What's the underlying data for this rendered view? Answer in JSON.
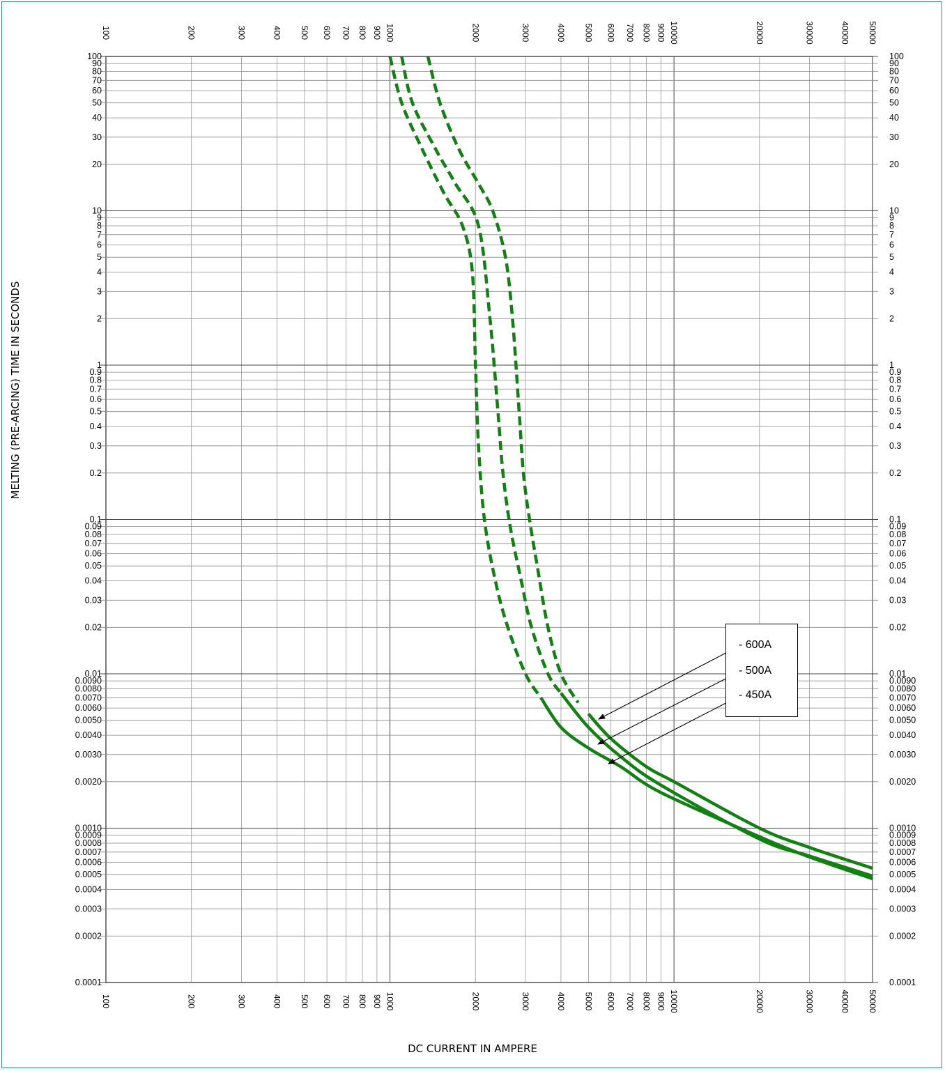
{
  "chart_data": {
    "type": "line",
    "xlabel": "DC CURRENT IN AMPERE",
    "ylabel": "MELTING (PRE-ARCING) TIME IN SECONDS",
    "xscale": "log",
    "yscale": "log",
    "xlim": [
      100,
      50000
    ],
    "ylim": [
      0.0001,
      100
    ],
    "grid": true,
    "x_ticks": [
      "100",
      "200",
      "300",
      "400",
      "500",
      "600",
      "700",
      "800",
      "900",
      "1000",
      "2000",
      "3000",
      "4000",
      "5000",
      "6000",
      "7000",
      "8000",
      "9000",
      "10000",
      "20000",
      "30000",
      "40000",
      "50000"
    ],
    "y_ticks": [
      "100",
      "90",
      "80",
      "70",
      "60",
      "50",
      "40",
      "30",
      "20",
      "10",
      "9",
      "8",
      "7",
      "6",
      "5",
      "4",
      "3",
      "2",
      "1",
      "0.9",
      "0.8",
      "0.7",
      "0.6",
      "0.5",
      "0.4",
      "0.3",
      "0.2",
      "0.1",
      "0.09",
      "0.08",
      "0.07",
      "0.06",
      "0.05",
      "0.04",
      "0.03",
      "0.02",
      "0.01",
      "0.0090",
      "0.0080",
      "0.0070",
      "0.0060",
      "0.0050",
      "0.0040",
      "0.0030",
      "0.0020",
      "0.0010",
      "0.0009",
      "0.0008",
      "0.0007",
      "0.0006",
      "0.0005",
      "0.0004",
      "0.0003",
      "0.0002",
      "0.0001"
    ],
    "legend_placement": "center-right",
    "line_color": "#128012",
    "series": [
      {
        "name": "600A",
        "dashed_points": [
          [
            1360,
            100
          ],
          [
            1500,
            50
          ],
          [
            1750,
            25
          ],
          [
            2050,
            15
          ],
          [
            2300,
            10
          ],
          [
            2550,
            5
          ],
          [
            2700,
            2
          ],
          [
            2850,
            0.5
          ],
          [
            2950,
            0.2
          ],
          [
            3100,
            0.1
          ],
          [
            3300,
            0.05
          ],
          [
            3600,
            0.02
          ],
          [
            4000,
            0.01
          ],
          [
            4600,
            0.0065
          ]
        ],
        "solid_points": [
          [
            5000,
            0.0055
          ],
          [
            6000,
            0.0038
          ],
          [
            8000,
            0.0025
          ],
          [
            10000,
            0.002
          ],
          [
            20000,
            0.001
          ],
          [
            30000,
            0.00075
          ],
          [
            50000,
            0.00055
          ]
        ]
      },
      {
        "name": "500A",
        "dashed_points": [
          [
            1100,
            100
          ],
          [
            1200,
            50
          ],
          [
            1450,
            25
          ],
          [
            1700,
            15
          ],
          [
            2050,
            8
          ],
          [
            2250,
            2
          ],
          [
            2400,
            0.5
          ],
          [
            2500,
            0.2
          ],
          [
            2650,
            0.09
          ],
          [
            2900,
            0.04
          ],
          [
            3150,
            0.02
          ],
          [
            3600,
            0.01
          ],
          [
            4000,
            0.0075
          ]
        ],
        "solid_points": [
          [
            4000,
            0.0075
          ],
          [
            5000,
            0.0045
          ],
          [
            6500,
            0.0029
          ],
          [
            9000,
            0.0019
          ],
          [
            20000,
            0.00085
          ],
          [
            30000,
            0.00066
          ],
          [
            50000,
            0.00049
          ]
        ]
      },
      {
        "name": "450A",
        "dashed_points": [
          [
            1000,
            100
          ],
          [
            1100,
            50
          ],
          [
            1300,
            25
          ],
          [
            1550,
            13
          ],
          [
            1800,
            8
          ],
          [
            1950,
            4
          ],
          [
            2000,
            1
          ],
          [
            2050,
            0.3
          ],
          [
            2150,
            0.1
          ],
          [
            2350,
            0.04
          ],
          [
            2600,
            0.02
          ],
          [
            3000,
            0.01
          ],
          [
            3400,
            0.007
          ]
        ],
        "solid_points": [
          [
            3400,
            0.007
          ],
          [
            4000,
            0.0045
          ],
          [
            5000,
            0.0033
          ],
          [
            6500,
            0.0025
          ],
          [
            9000,
            0.0017
          ],
          [
            20000,
            0.00088
          ],
          [
            30000,
            0.00065
          ],
          [
            50000,
            0.00047
          ]
        ]
      }
    ],
    "legend": [
      "- 600A",
      "- 500A",
      "- 450A"
    ]
  }
}
